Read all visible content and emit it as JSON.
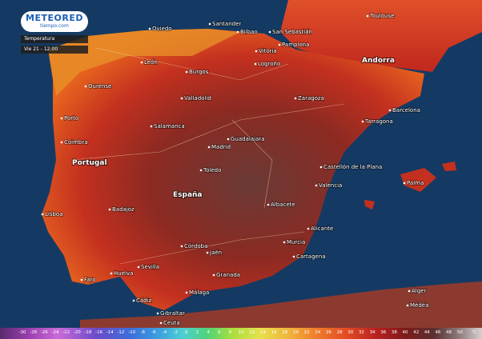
{
  "logo": {
    "brand": "METEORED",
    "site": "tiempo.com"
  },
  "panel": {
    "layer": "Temperatura",
    "time": "Vie 21 - 12:00"
  },
  "countries": [
    "Portugal",
    "España",
    "Andorra"
  ],
  "cities": [
    "Oviedo",
    "Santander",
    "Bilbao",
    "San Sebastián",
    "Vitoria",
    "Pamplona",
    "Logroño",
    "Burgos",
    "León",
    "Valladolid",
    "Salamanca",
    "Zaragoza",
    "Barcelona",
    "Tarragona",
    "Toulouse",
    "Madrid",
    "Guadalajara",
    "Toledo",
    "Lisboa",
    "Badajoz",
    "Albacete",
    "Valencia",
    "Castellón de la Plana",
    "Palma",
    "Alicante",
    "Murcia",
    "Cartagena",
    "Córdoba",
    "Jaén",
    "Sevilla",
    "Granada",
    "Málaga",
    "Huelva",
    "Faro",
    "Cádiz",
    "Ceuta",
    "Gibraltar",
    "Alger",
    "Médéa",
    "Porto",
    "Coimbra",
    "Ourense"
  ],
  "legend": {
    "ticks": [
      -30,
      -28,
      -26,
      -24,
      -22,
      -20,
      -18,
      -16,
      -14,
      -12,
      -10,
      -8,
      -6,
      -4,
      -2,
      0,
      2,
      4,
      6,
      8,
      10,
      12,
      14,
      16,
      18,
      20,
      22,
      24,
      26,
      28,
      30,
      32,
      34,
      36,
      38,
      40,
      42,
      44,
      46,
      48,
      50
    ],
    "unit": "°C"
  }
}
